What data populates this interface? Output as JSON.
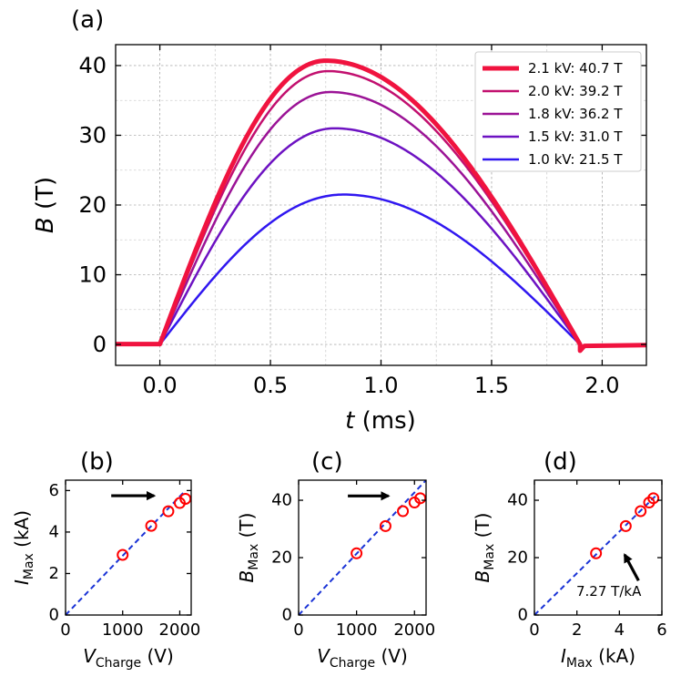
{
  "chart_data": [
    {
      "panel": "(a)",
      "type": "line",
      "xlabel_var": "t",
      "xlabel_unit": " (ms)",
      "ylabel_var": "B",
      "ylabel_unit": " (T)",
      "xlim": [
        -0.2,
        2.2
      ],
      "ylim": [
        -3,
        43
      ],
      "xticks": [
        0.0,
        0.5,
        1.0,
        1.5,
        2.0
      ],
      "xtick_labels": [
        "0.0",
        "0.5",
        "1.0",
        "1.5",
        "2.0"
      ],
      "yticks": [
        0,
        10,
        20,
        30,
        40
      ],
      "ytick_labels": [
        "0",
        "10",
        "20",
        "30",
        "40"
      ],
      "grid": true,
      "legend_position": "top-right",
      "pulse": {
        "start_ms": 0.0,
        "end_ms": 1.9,
        "undershoot_T": -0.9
      },
      "series": [
        {
          "name": "2.1 kV: 40.7 T",
          "peak_T": 40.7,
          "peak_time_ms": 0.75,
          "color": "#f0133f",
          "width": 5
        },
        {
          "name": "2.0 kV: 39.2 T",
          "peak_T": 39.2,
          "peak_time_ms": 0.76,
          "color": "#c2106f",
          "width": 2.5
        },
        {
          "name": "1.8 kV: 36.2 T",
          "peak_T": 36.2,
          "peak_time_ms": 0.77,
          "color": "#9b1396",
          "width": 2.5
        },
        {
          "name": "1.5 kV: 31.0 T",
          "peak_T": 31.0,
          "peak_time_ms": 0.79,
          "color": "#6d12c2",
          "width": 2.5
        },
        {
          "name": "1.0 kV: 21.5 T",
          "peak_T": 21.5,
          "peak_time_ms": 0.83,
          "color": "#3017f0",
          "width": 2.5
        }
      ]
    },
    {
      "panel": "(b)",
      "type": "scatter",
      "xlabel_var": "V",
      "xlabel_sub": "Charge",
      "xlabel_unit": " (V)",
      "ylabel_var": "I",
      "ylabel_sub": "Max",
      "ylabel_unit": " (kA)",
      "xlim": [
        0,
        2200
      ],
      "ylim": [
        0,
        6.5
      ],
      "xticks": [
        0,
        1000,
        2000
      ],
      "xtick_labels": [
        "0",
        "1000",
        "2000"
      ],
      "yticks": [
        0,
        2,
        4,
        6
      ],
      "ytick_labels": [
        "0",
        "2",
        "4",
        "6"
      ],
      "x": [
        1000,
        1500,
        1800,
        2000,
        2100
      ],
      "y": [
        2.9,
        4.3,
        5.0,
        5.4,
        5.6
      ],
      "fit_line": {
        "x": [
          0,
          2100
        ],
        "y": [
          0,
          6.0
        ]
      },
      "arrow": {
        "from": [
          800,
          5.75
        ],
        "to": [
          1550,
          5.75
        ]
      }
    },
    {
      "panel": "(c)",
      "type": "scatter",
      "xlabel_var": "V",
      "xlabel_sub": "Charge",
      "xlabel_unit": " (V)",
      "ylabel_var": "B",
      "ylabel_sub": "Max",
      "ylabel_unit": " (T)",
      "xlim": [
        0,
        2200
      ],
      "ylim": [
        0,
        47
      ],
      "xticks": [
        0,
        1000,
        2000
      ],
      "xtick_labels": [
        "0",
        "1000",
        "2000"
      ],
      "yticks": [
        0,
        20,
        40
      ],
      "ytick_labels": [
        "0",
        "20",
        "40"
      ],
      "x": [
        1000,
        1500,
        1800,
        2000,
        2100
      ],
      "y": [
        21.5,
        31.0,
        36.2,
        39.2,
        40.7
      ],
      "fit_line": {
        "x": [
          0,
          2200
        ],
        "y": [
          0,
          47
        ]
      },
      "arrow": {
        "from": [
          850,
          41.5
        ],
        "to": [
          1550,
          41.5
        ]
      }
    },
    {
      "panel": "(d)",
      "type": "scatter",
      "xlabel_var": "I",
      "xlabel_sub": "Max",
      "xlabel_unit": " (kA)",
      "ylabel_var": "B",
      "ylabel_sub": "Max",
      "ylabel_unit": " (T)",
      "xlim": [
        0,
        6
      ],
      "ylim": [
        0,
        47
      ],
      "xticks": [
        0,
        2,
        4,
        6
      ],
      "xtick_labels": [
        "0",
        "2",
        "4",
        "6"
      ],
      "yticks": [
        0,
        20,
        40
      ],
      "ytick_labels": [
        "0",
        "20",
        "40"
      ],
      "x": [
        2.9,
        4.3,
        5.0,
        5.4,
        5.6
      ],
      "y": [
        21.5,
        31.0,
        36.2,
        39.2,
        40.7
      ],
      "fit_line": {
        "x": [
          0,
          5.8
        ],
        "y": [
          0,
          42.2
        ]
      },
      "slope_annotation": "7.27 T/kA",
      "arrow": {
        "from": [
          4.9,
          12
        ],
        "to": [
          4.25,
          21
        ]
      }
    }
  ],
  "colors": {
    "marker": "#ff0000",
    "fit": "#1a33d6",
    "arrow": "#000000",
    "grid": "#b0b0b0"
  }
}
